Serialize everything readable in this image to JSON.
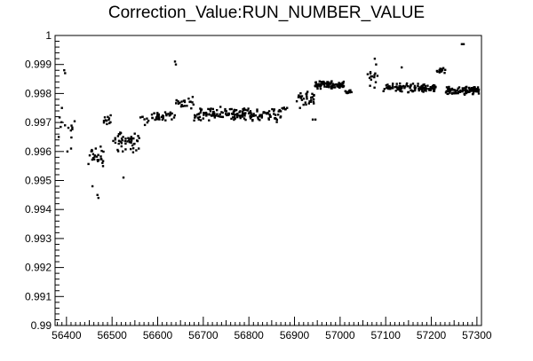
{
  "chart_data": {
    "type": "scatter",
    "title": "Correction_Value:RUN_NUMBER_VALUE",
    "xlabel": "",
    "ylabel": "",
    "xlim": [
      56375,
      57310
    ],
    "ylim": [
      0.99,
      1.0
    ],
    "x_ticks": [
      "56400",
      "56500",
      "56600",
      "56700",
      "56800",
      "56900",
      "57000",
      "57100",
      "57200",
      "57300"
    ],
    "y_ticks": [
      "0.99",
      "0.991",
      "0.992",
      "0.993",
      "0.994",
      "0.995",
      "0.996",
      "0.997",
      "0.998",
      "0.999",
      "1"
    ],
    "grid": false,
    "colors": {
      "points": "#000000",
      "axes": "#000000",
      "background": "#ffffff"
    },
    "outliers": [
      {
        "x": 56395,
        "y": 0.9988
      },
      {
        "x": 56397,
        "y": 0.9987
      },
      {
        "x": 56383,
        "y": 0.9965
      },
      {
        "x": 56390,
        "y": 0.9975
      },
      {
        "x": 56402,
        "y": 0.996
      },
      {
        "x": 56410,
        "y": 0.9961
      },
      {
        "x": 56470,
        "y": 0.9944
      },
      {
        "x": 56468,
        "y": 0.9945
      },
      {
        "x": 56457,
        "y": 0.9948
      },
      {
        "x": 56525,
        "y": 0.9951
      },
      {
        "x": 56638,
        "y": 0.9991
      },
      {
        "x": 56640,
        "y": 0.999
      },
      {
        "x": 57267,
        "y": 0.9997
      },
      {
        "x": 57271,
        "y": 0.9997
      },
      {
        "x": 57076,
        "y": 0.9992
      },
      {
        "x": 57079,
        "y": 0.999
      },
      {
        "x": 57135,
        "y": 0.9989
      },
      {
        "x": 56940,
        "y": 0.9971
      },
      {
        "x": 56946,
        "y": 0.9971
      },
      {
        "x": 56912,
        "y": 0.9975
      }
    ],
    "clusters": [
      {
        "x0": 56378,
        "x1": 56418,
        "ymid": 0.99685,
        "spread": 0.00055,
        "n": 11
      },
      {
        "x0": 56448,
        "x1": 56482,
        "ymid": 0.99585,
        "spread": 0.00065,
        "n": 26
      },
      {
        "x0": 56482,
        "x1": 56500,
        "ymid": 0.99705,
        "spread": 0.00025,
        "n": 12
      },
      {
        "x0": 56500,
        "x1": 56560,
        "ymid": 0.99635,
        "spread": 0.00045,
        "n": 48
      },
      {
        "x0": 56562,
        "x1": 56600,
        "ymid": 0.99715,
        "spread": 0.0003,
        "n": 20
      },
      {
        "x0": 56600,
        "x1": 56640,
        "ymid": 0.99725,
        "spread": 0.0002,
        "n": 22
      },
      {
        "x0": 56640,
        "x1": 56680,
        "ymid": 0.99765,
        "spread": 0.00025,
        "n": 22
      },
      {
        "x0": 56680,
        "x1": 56800,
        "ymid": 0.9973,
        "spread": 0.00025,
        "n": 110
      },
      {
        "x0": 56800,
        "x1": 56872,
        "ymid": 0.99725,
        "spread": 0.00025,
        "n": 55
      },
      {
        "x0": 56872,
        "x1": 56885,
        "ymid": 0.99745,
        "spread": 0.00015,
        "n": 6
      },
      {
        "x0": 56905,
        "x1": 56945,
        "ymid": 0.99785,
        "spread": 0.0003,
        "n": 30
      },
      {
        "x0": 56945,
        "x1": 57010,
        "ymid": 0.9983,
        "spread": 0.00015,
        "n": 90
      },
      {
        "x0": 57010,
        "x1": 57025,
        "ymid": 0.99805,
        "spread": 0.0001,
        "n": 10
      },
      {
        "x0": 57060,
        "x1": 57082,
        "ymid": 0.9985,
        "spread": 0.00035,
        "n": 14
      },
      {
        "x0": 57095,
        "x1": 57120,
        "ymid": 0.9982,
        "spread": 0.00015,
        "n": 18
      },
      {
        "x0": 57120,
        "x1": 57210,
        "ymid": 0.9982,
        "spread": 0.00018,
        "n": 95
      },
      {
        "x0": 57212,
        "x1": 57232,
        "ymid": 0.9988,
        "spread": 0.0001,
        "n": 14
      },
      {
        "x0": 57232,
        "x1": 57312,
        "ymid": 0.9981,
        "spread": 0.00015,
        "n": 110
      }
    ]
  }
}
